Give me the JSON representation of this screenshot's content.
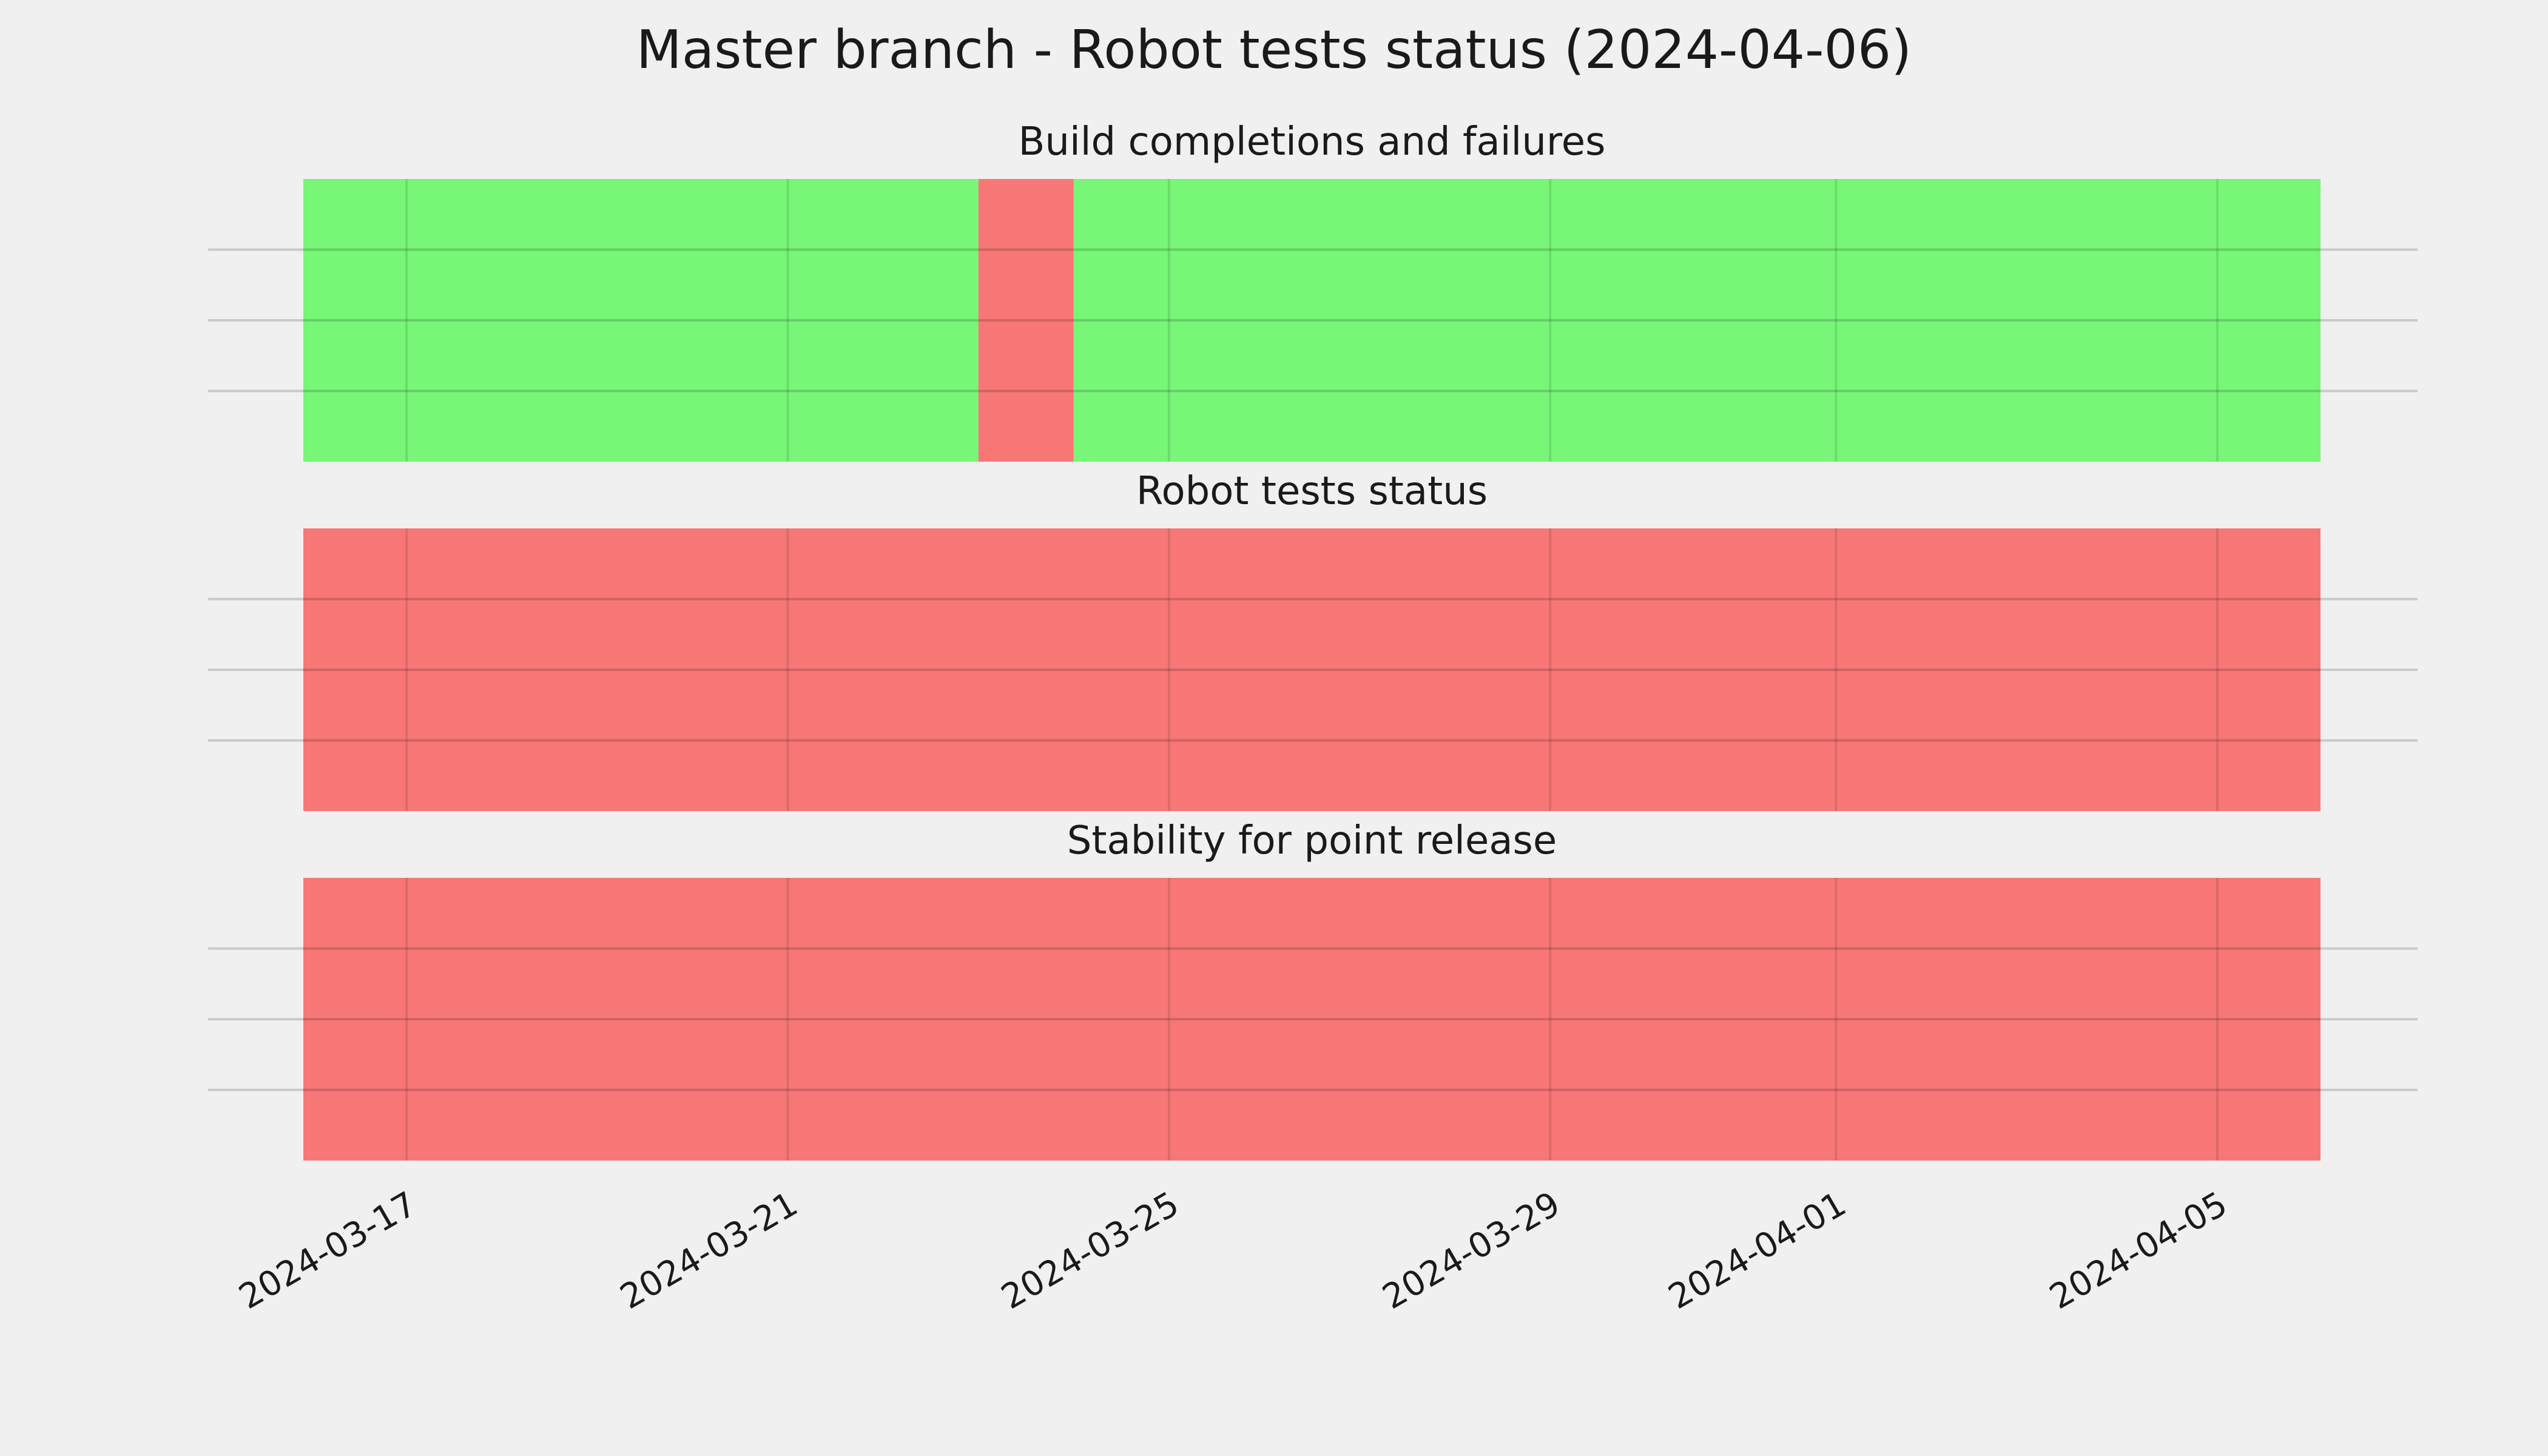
{
  "chart_data": {
    "type": "timeline",
    "title": "Master branch - Robot tests status (2024-04-06)",
    "x_range": [
      "2024-03-15T22:00",
      "2024-04-06T02:00"
    ],
    "x_ticks": [
      "2024-03-17",
      "2024-03-21",
      "2024-03-25",
      "2024-03-29",
      "2024-04-01",
      "2024-04-05"
    ],
    "y_axis": {
      "tick_labels_visible": false,
      "gridlines": 3
    },
    "grid": true,
    "colors": {
      "pass": "#77f677",
      "fail": "#f77777",
      "background": "#f0f0f0",
      "grid": "#c8c8c8"
    },
    "panels": [
      {
        "title": "Build completions and failures",
        "segments": [
          {
            "start": "2024-03-15T22:00",
            "end": "2024-03-23T00:00",
            "status": "pass"
          },
          {
            "start": "2024-03-23T00:00",
            "end": "2024-03-24T00:00",
            "status": "fail"
          },
          {
            "start": "2024-03-24T00:00",
            "end": "2024-04-06T02:00",
            "status": "pass"
          }
        ]
      },
      {
        "title": "Robot tests status",
        "segments": [
          {
            "start": "2024-03-15T22:00",
            "end": "2024-04-06T02:00",
            "status": "fail"
          }
        ]
      },
      {
        "title": "Stability for point release",
        "segments": [
          {
            "start": "2024-03-15T22:00",
            "end": "2024-04-06T02:00",
            "status": "fail"
          }
        ]
      }
    ]
  }
}
